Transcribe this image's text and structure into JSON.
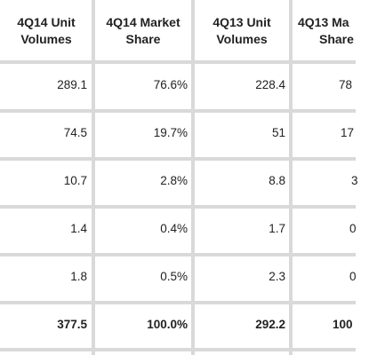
{
  "table": {
    "headers": [
      [
        "4Q14 Unit",
        "Volumes"
      ],
      [
        "4Q14 Market",
        "Share"
      ],
      [
        "4Q13 Unit",
        "Volumes"
      ],
      [
        "4Q13 Ma",
        "Share"
      ]
    ],
    "rows": [
      [
        "289.1",
        "76.6%",
        "228.4",
        "78"
      ],
      [
        "74.5",
        "19.7%",
        "51",
        "17"
      ],
      [
        "10.7",
        "2.8%",
        "8.8",
        "3"
      ],
      [
        "1.4",
        "0.4%",
        "1.7",
        "0"
      ],
      [
        "1.8",
        "0.5%",
        "2.3",
        "0"
      ],
      [
        "377.5",
        "100.0%",
        "292.2",
        "100"
      ]
    ]
  }
}
